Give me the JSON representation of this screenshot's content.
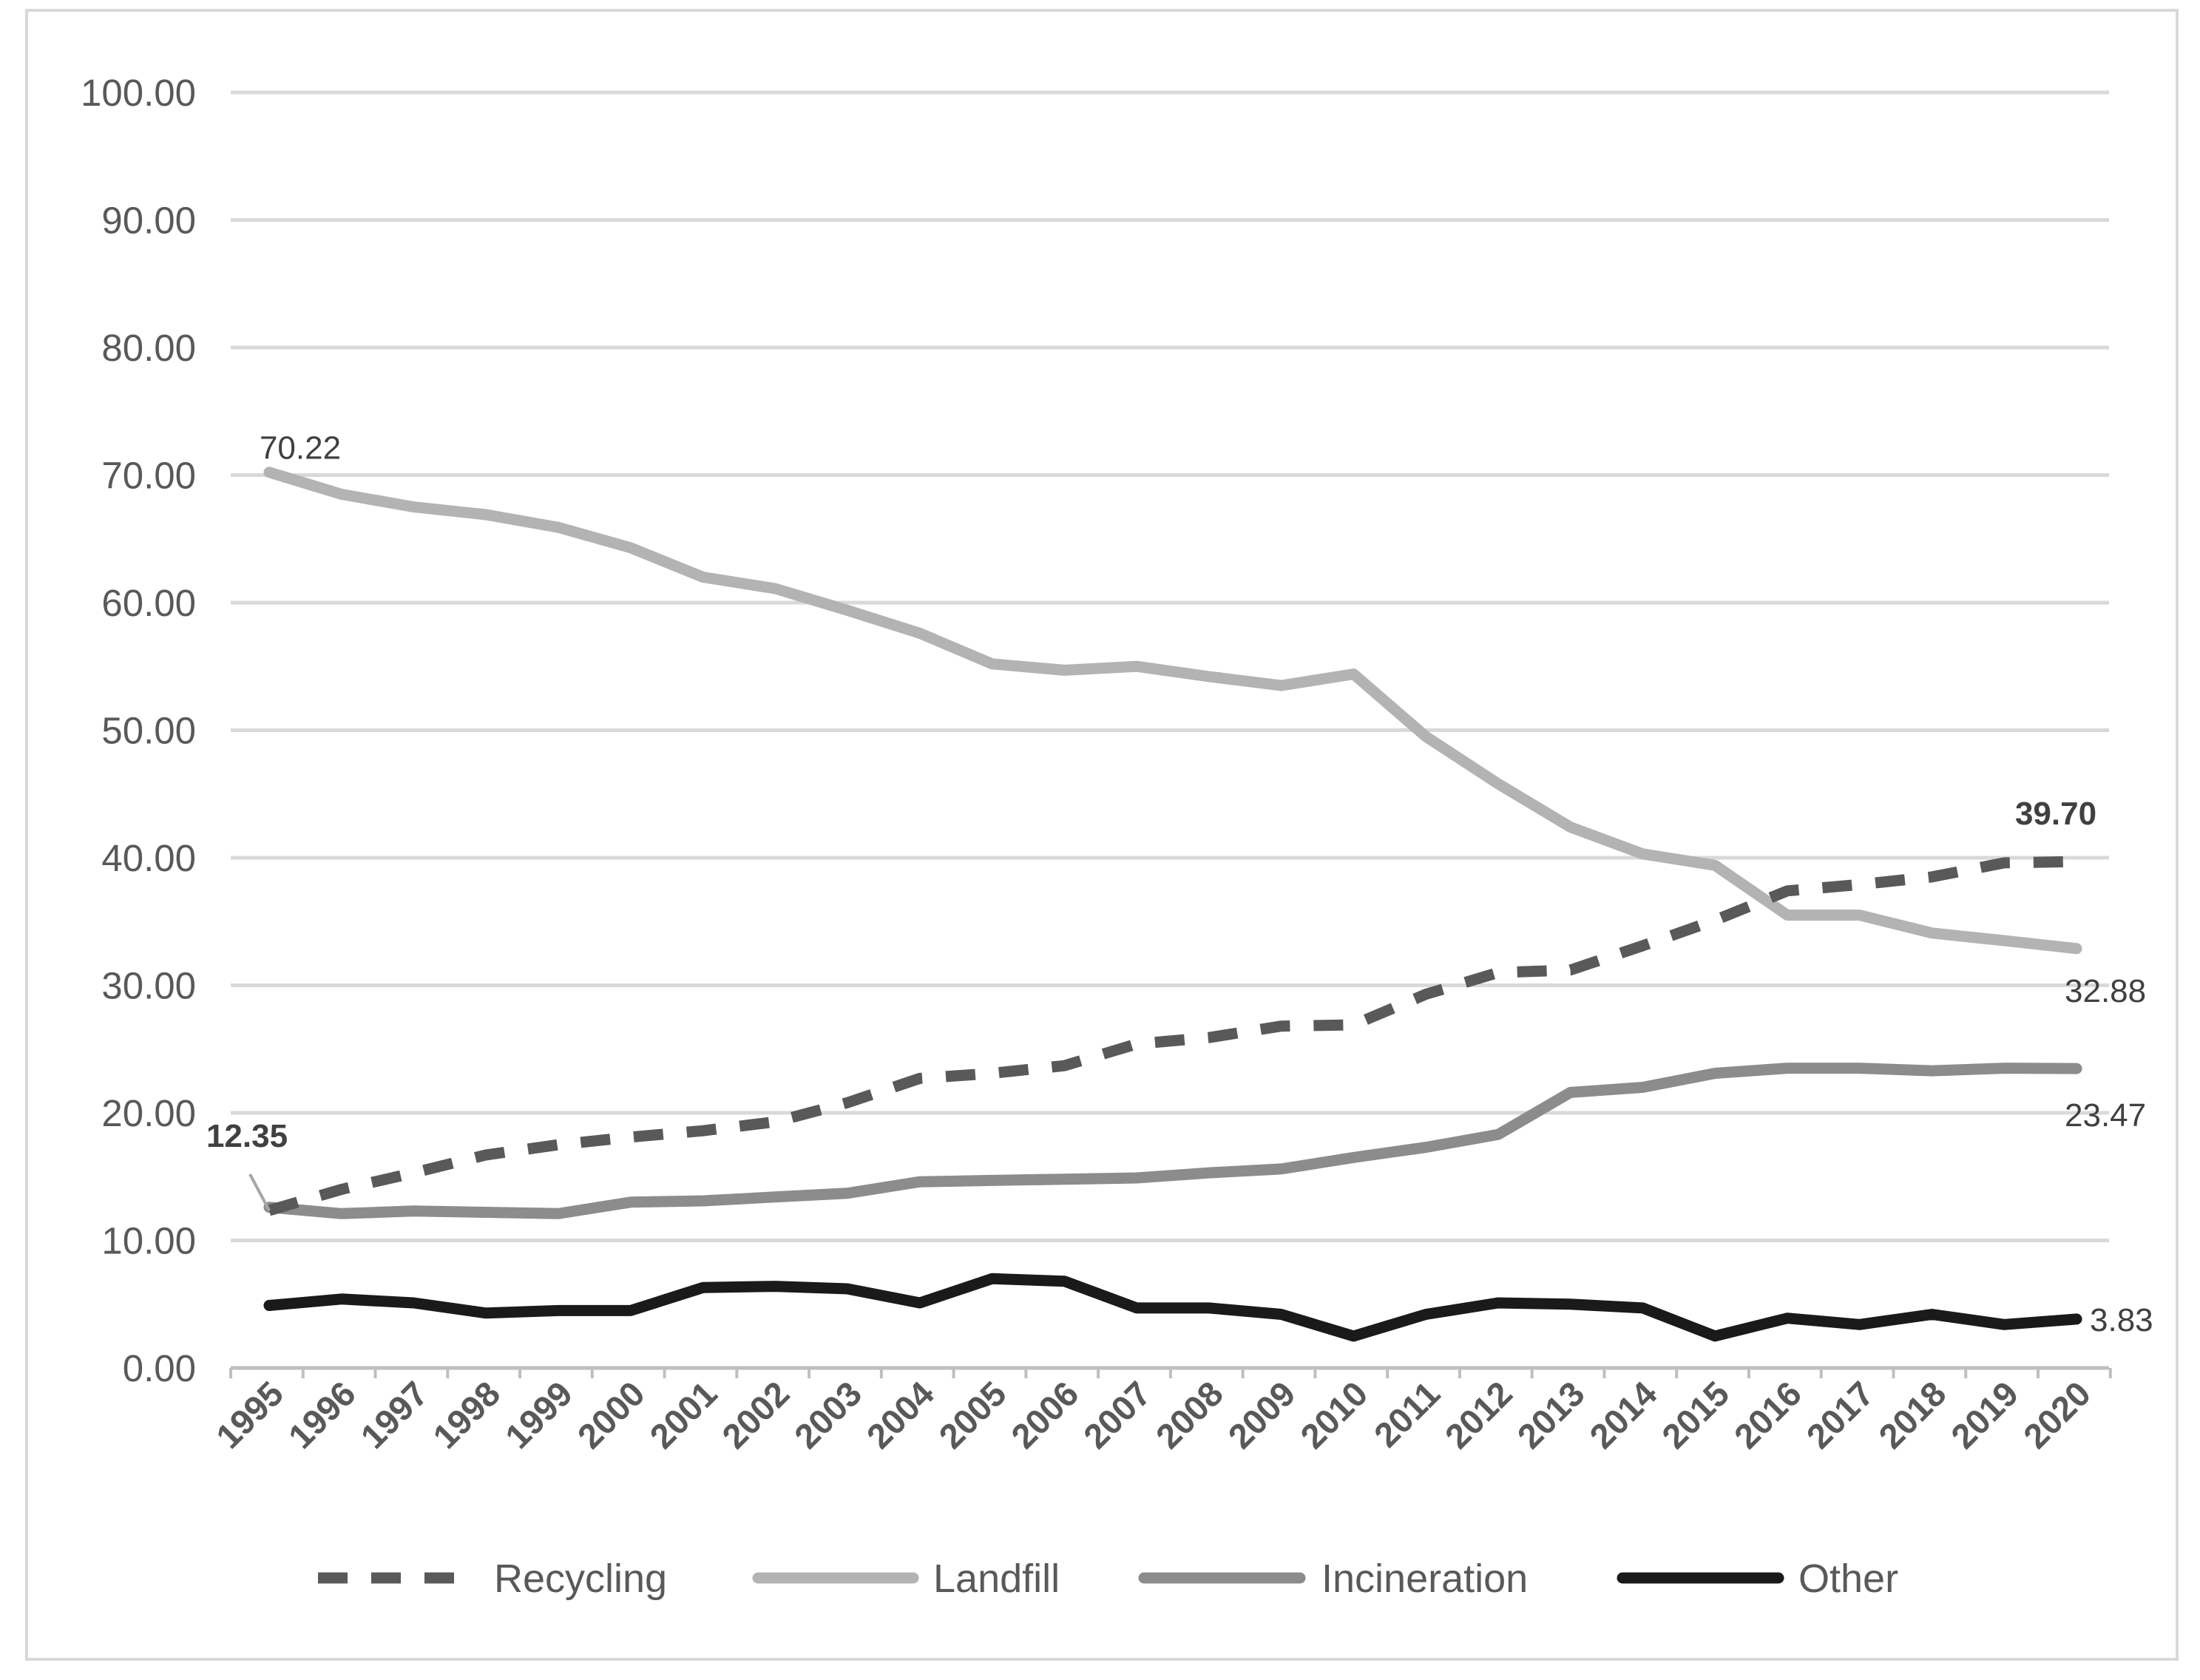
{
  "chart_data": {
    "type": "line",
    "title": "",
    "xlabel": "",
    "ylabel": "",
    "ylim": [
      0,
      100
    ],
    "yticks": [
      "0.00",
      "10.00",
      "20.00",
      "30.00",
      "40.00",
      "50.00",
      "60.00",
      "70.00",
      "80.00",
      "90.00",
      "100.00"
    ],
    "grid": true,
    "legend_position": "bottom",
    "categories": [
      "1995",
      "1996",
      "1997",
      "1998",
      "1999",
      "2000",
      "2001",
      "2002",
      "2003",
      "2004",
      "2005",
      "2006",
      "2007",
      "2008",
      "2009",
      "2010",
      "2011",
      "2012",
      "2013",
      "2014",
      "2015",
      "2016",
      "2017",
      "2018",
      "2019",
      "2020"
    ],
    "series": [
      {
        "name": "Recycling",
        "style": "dashed",
        "color": "#595959",
        "values": [
          12.35,
          14.0,
          15.3,
          16.7,
          17.5,
          18.1,
          18.6,
          19.3,
          20.8,
          22.7,
          23.1,
          23.7,
          25.4,
          25.9,
          26.8,
          26.9,
          29.3,
          31.0,
          31.2,
          33.1,
          35.1,
          37.4,
          37.9,
          38.5,
          39.6,
          39.7
        ]
      },
      {
        "name": "Landfill",
        "style": "solid",
        "color": "#b3b3b3",
        "values": [
          70.22,
          68.5,
          67.5,
          66.9,
          65.9,
          64.3,
          62.0,
          61.1,
          59.4,
          57.6,
          55.2,
          54.7,
          55.0,
          54.2,
          53.5,
          54.4,
          49.5,
          45.8,
          42.4,
          40.3,
          39.4,
          35.5,
          35.5,
          34.1,
          33.5,
          32.88
        ]
      },
      {
        "name": "Incineration",
        "style": "solid",
        "color": "#8c8c8c",
        "values": [
          12.6,
          12.1,
          12.3,
          12.2,
          12.1,
          13.0,
          13.1,
          13.4,
          13.7,
          14.6,
          14.7,
          14.8,
          14.9,
          15.3,
          15.6,
          16.5,
          17.3,
          18.3,
          21.6,
          22.0,
          23.1,
          23.5,
          23.5,
          23.3,
          23.5,
          23.47
        ]
      },
      {
        "name": "Other",
        "style": "solid",
        "color": "#1a1a1a",
        "values": [
          4.9,
          5.4,
          5.1,
          4.3,
          4.5,
          4.5,
          6.3,
          6.4,
          6.2,
          5.1,
          7.0,
          6.8,
          4.7,
          4.7,
          4.2,
          2.5,
          4.2,
          5.1,
          5.0,
          4.7,
          2.5,
          3.9,
          3.4,
          4.2,
          3.4,
          3.83
        ]
      }
    ],
    "annotations": [
      {
        "text": "70.22",
        "series": "Landfill",
        "category": "1995",
        "bold": false
      },
      {
        "text": "12.35",
        "series": "Recycling",
        "category": "1995",
        "bold": true
      },
      {
        "text": "39.70",
        "series": "Recycling",
        "category": "2020",
        "bold": true
      },
      {
        "text": "32.88",
        "series": "Landfill",
        "category": "2020",
        "bold": false
      },
      {
        "text": "23.47",
        "series": "Incineration",
        "category": "2020",
        "bold": false
      },
      {
        "text": "3.83",
        "series": "Other",
        "category": "2020",
        "bold": false
      }
    ]
  }
}
